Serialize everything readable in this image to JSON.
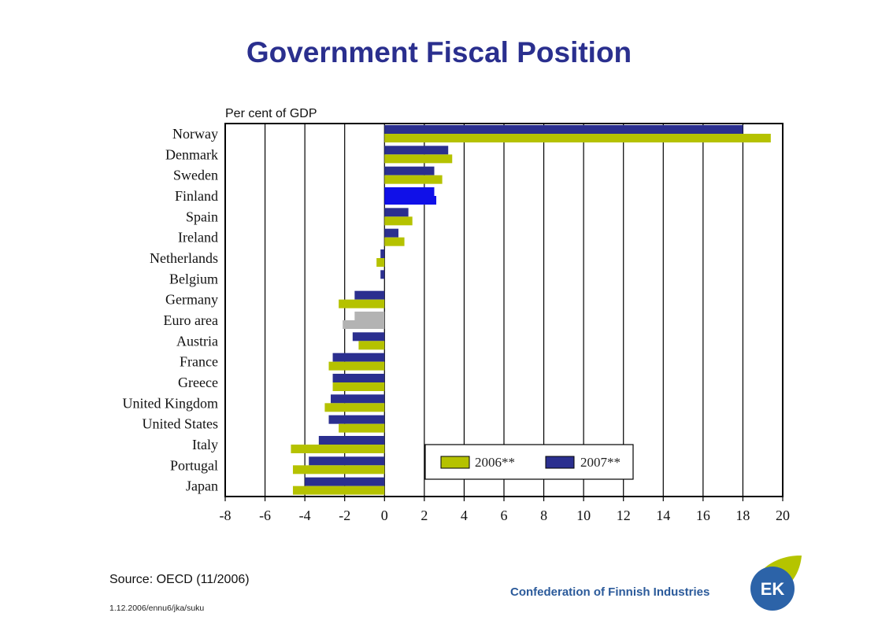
{
  "title": "Government Fiscal Position",
  "source": "Source: OECD (11/2006)",
  "doc_id": "1.12.2006/ennu6/jka/suku",
  "org_name": "Confederation of Finnish Industries",
  "logo_text": "EK",
  "colors": {
    "title": "#2a2f8e",
    "series_2006": "#b5c200",
    "series_2007": "#2b2f8f",
    "highlight_finland": "#1010e8",
    "highlight_euro_area": "#b3b3b3"
  },
  "chart_data": {
    "type": "bar",
    "orientation": "horizontal",
    "title": "",
    "ylabel": "Per cent of GDP",
    "xlabel": "",
    "xlim": [
      -8,
      20
    ],
    "x_ticks": [
      "-8",
      "-6",
      "-4",
      "-2",
      "0",
      "2",
      "4",
      "6",
      "8",
      "10",
      "12",
      "14",
      "16",
      "18",
      "20"
    ],
    "grid": "vertical",
    "legend_position": "bottom-right",
    "categories": [
      "Norway",
      "Denmark",
      "Sweden",
      "Finland",
      "Spain",
      "Ireland",
      "Netherlands",
      "Belgium",
      "Germany",
      "Euro area",
      "Austria",
      "France",
      "Greece",
      "United Kingdom",
      "United States",
      "Italy",
      "Portugal",
      "Japan"
    ],
    "series": [
      {
        "name": "2006**",
        "values": [
          19.4,
          3.4,
          2.9,
          2.6,
          1.4,
          1.0,
          -0.4,
          0.0,
          -2.3,
          -2.1,
          -1.3,
          -2.8,
          -2.6,
          -3.0,
          -2.3,
          -4.7,
          -4.6,
          -4.6
        ]
      },
      {
        "name": "2007**",
        "values": [
          18.0,
          3.2,
          2.5,
          2.5,
          1.2,
          0.7,
          -0.2,
          -0.2,
          -1.5,
          -1.5,
          -1.6,
          -2.6,
          -2.6,
          -2.7,
          -2.8,
          -3.3,
          -3.8,
          -4.0
        ]
      }
    ]
  }
}
